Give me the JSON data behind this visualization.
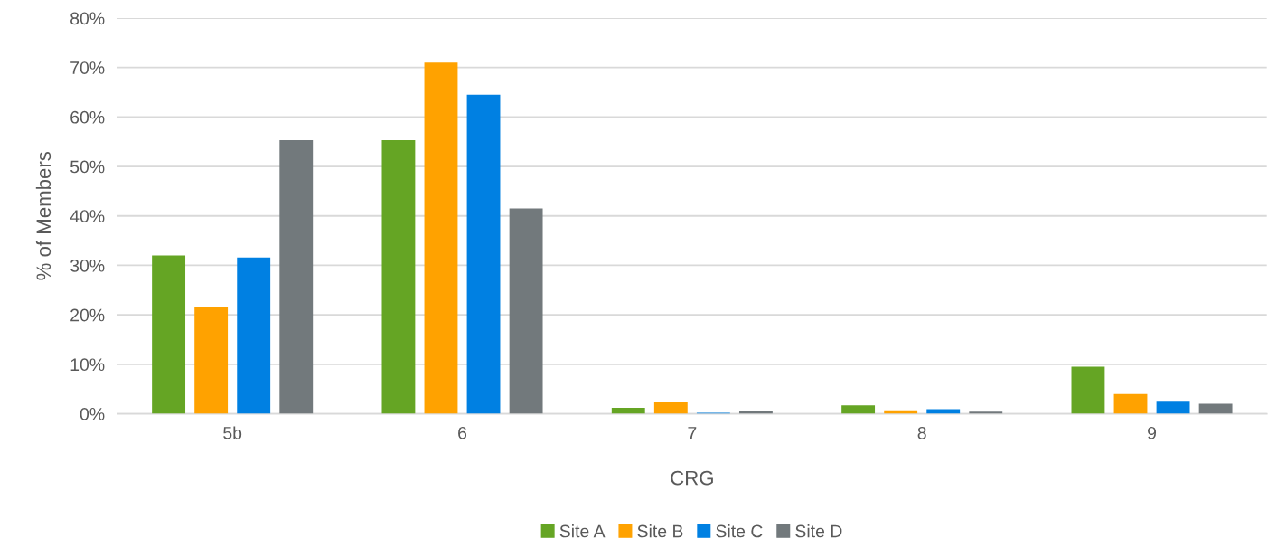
{
  "chart_data": {
    "type": "bar",
    "xlabel": "CRG",
    "ylabel": "% of Members",
    "categories": [
      "5b",
      "6",
      "7",
      "8",
      "9"
    ],
    "series": [
      {
        "name": "Site A",
        "color": "#65a524",
        "values": [
          32.0,
          55.3,
          1.2,
          1.7,
          9.5
        ]
      },
      {
        "name": "Site B",
        "color": "#ffa200",
        "values": [
          21.6,
          71.0,
          2.3,
          0.7,
          4.0
        ]
      },
      {
        "name": "Site C",
        "color": "#0080e2",
        "values": [
          31.6,
          64.5,
          0.2,
          0.9,
          2.6
        ]
      },
      {
        "name": "Site D",
        "color": "#72797c",
        "values": [
          55.3,
          41.5,
          0.5,
          0.4,
          2.0
        ]
      }
    ],
    "ylim": [
      0,
      80
    ],
    "yticks": [
      {
        "value": 0,
        "label": "0%"
      },
      {
        "value": 10,
        "label": "10%"
      },
      {
        "value": 20,
        "label": "20%"
      },
      {
        "value": 30,
        "label": "30%"
      },
      {
        "value": 40,
        "label": "40%"
      },
      {
        "value": 50,
        "label": "50%"
      },
      {
        "value": 60,
        "label": "60%"
      },
      {
        "value": 70,
        "label": "70%"
      },
      {
        "value": 80,
        "label": "80%"
      }
    ],
    "grid": "y",
    "legend": "bottom"
  }
}
